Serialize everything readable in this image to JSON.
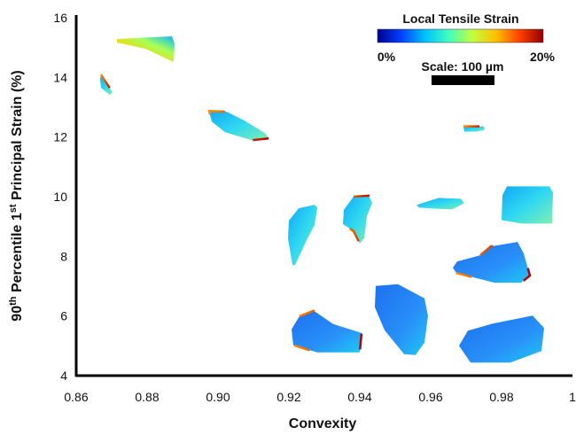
{
  "chart_data": {
    "type": "scatter",
    "title": "",
    "xlabel": "Convexity",
    "ylabel": {
      "pre": "90",
      "sup1": "th",
      "mid": " Percentile 1",
      "sup2": "st",
      "post": " Principal Strain (%)"
    },
    "xlim": [
      0.86,
      1.0
    ],
    "ylim": [
      4,
      16
    ],
    "x_ticks": [
      0.86,
      0.88,
      0.9,
      0.92,
      0.94,
      0.96,
      0.98,
      1.0
    ],
    "x_tick_labels": [
      "0.86",
      "0.88",
      "0.90",
      "0.92",
      "0.94",
      "0.96",
      "0.98",
      "1"
    ],
    "y_ticks": [
      4,
      6,
      8,
      10,
      12,
      14,
      16
    ],
    "y_tick_labels": [
      "4",
      "6",
      "8",
      "10",
      "12",
      "14",
      "16"
    ],
    "grid": false,
    "colorbar": {
      "title": "Local Tensile Strain",
      "min_label": "0%",
      "max_label": "20%",
      "colormap": [
        "#00008f",
        "#0040ff",
        "#00c0ff",
        "#40ffc0",
        "#c0ff40",
        "#ffc000",
        "#ff4000",
        "#8f0000"
      ],
      "placement": "top-right"
    },
    "scale_bar": {
      "label": "Scale: 100 µm",
      "length_um": 100
    },
    "points": [
      {
        "x": 0.88,
        "y": 15.05,
        "dominant_strain": "high",
        "peak_strain": "high"
      },
      {
        "x": 0.868,
        "y": 13.65,
        "dominant_strain": "medium",
        "peak_strain": "high"
      },
      {
        "x": 0.907,
        "y": 12.4,
        "dominant_strain": "medium",
        "peak_strain": "high"
      },
      {
        "x": 0.972,
        "y": 12.3,
        "dominant_strain": "medium",
        "peak_strain": "high"
      },
      {
        "x": 0.924,
        "y": 8.75,
        "dominant_strain": "medium",
        "peak_strain": "medium"
      },
      {
        "x": 0.939,
        "y": 9.2,
        "dominant_strain": "medium",
        "peak_strain": "high"
      },
      {
        "x": 0.963,
        "y": 9.75,
        "dominant_strain": "medium",
        "peak_strain": "medium"
      },
      {
        "x": 0.987,
        "y": 9.75,
        "dominant_strain": "medium",
        "peak_strain": "medium"
      },
      {
        "x": 0.978,
        "y": 7.8,
        "dominant_strain": "low",
        "peak_strain": "high"
      },
      {
        "x": 0.93,
        "y": 5.55,
        "dominant_strain": "low",
        "peak_strain": "high"
      },
      {
        "x": 0.952,
        "y": 6.0,
        "dominant_strain": "low",
        "peak_strain": "low"
      },
      {
        "x": 0.98,
        "y": 5.3,
        "dominant_strain": "low",
        "peak_strain": "low"
      }
    ]
  }
}
